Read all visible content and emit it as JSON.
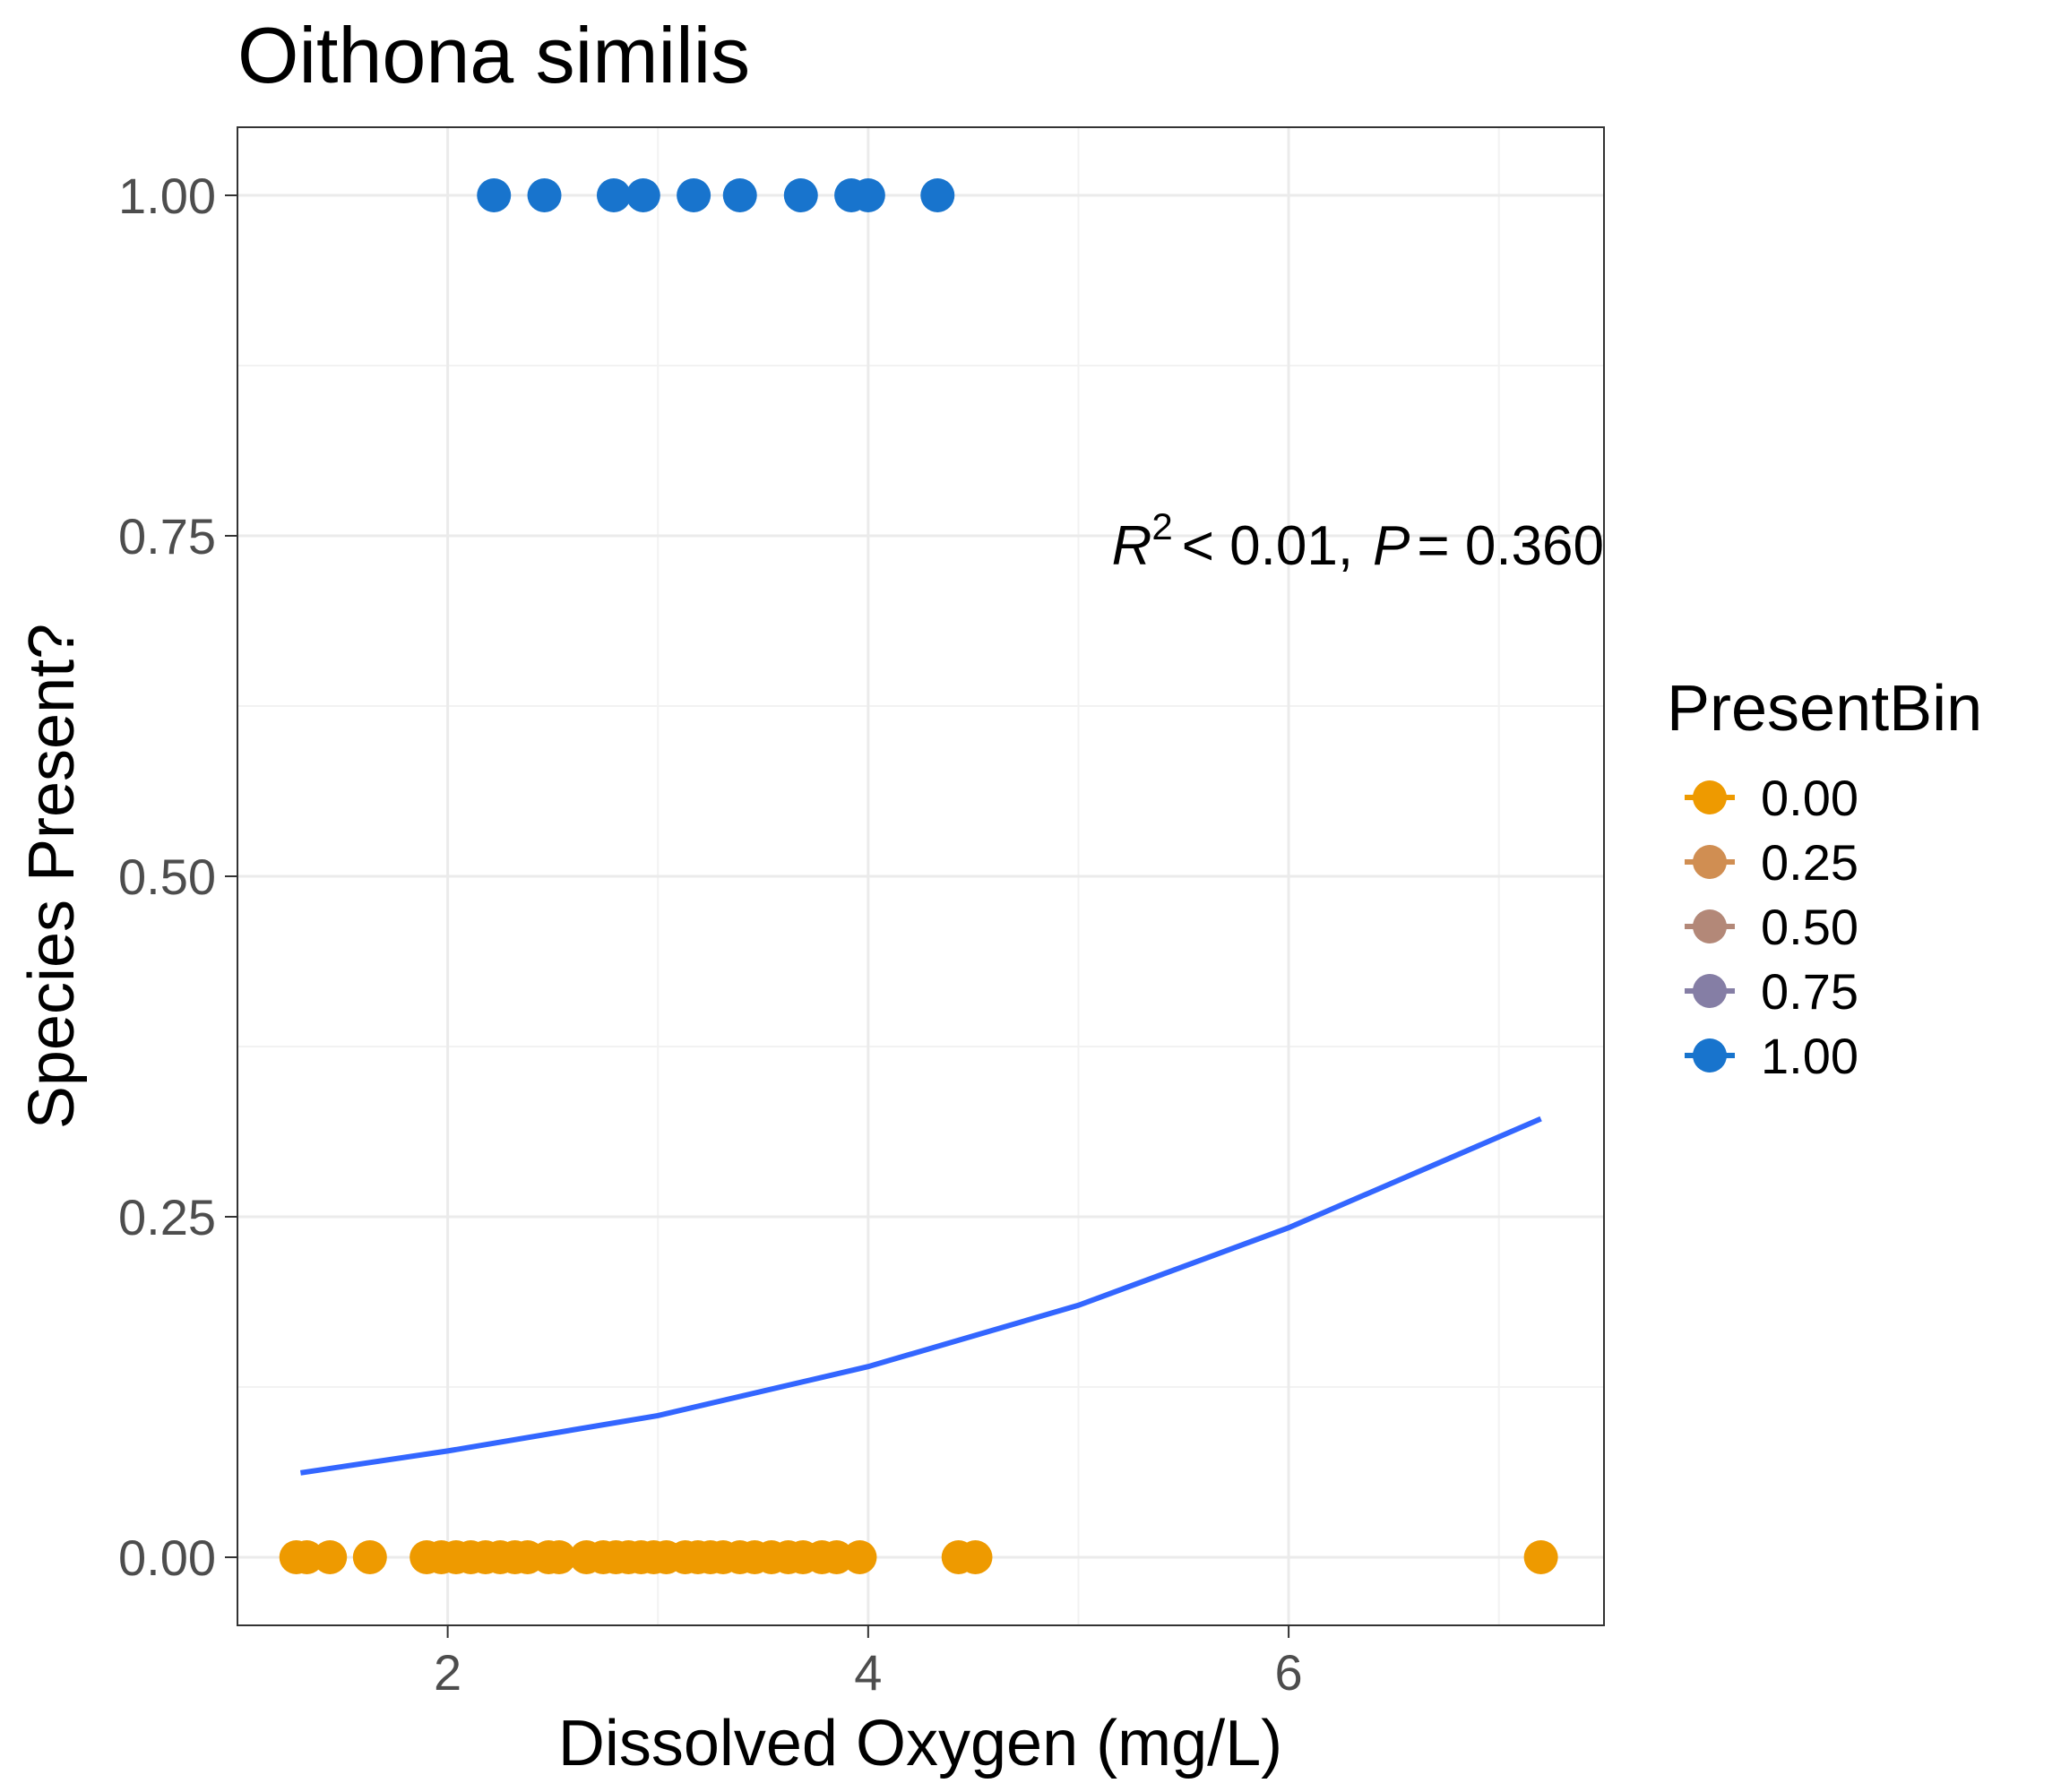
{
  "chart_data": {
    "type": "scatter",
    "title": "Oithona similis",
    "xlabel": "Dissolved Oxygen (mg/L)",
    "ylabel": "Species Present?",
    "xlim": [
      1.0,
      7.5
    ],
    "ylim": [
      -0.05,
      1.05
    ],
    "x_ticks": [
      2,
      4,
      6
    ],
    "x_tick_labels": [
      "2",
      "4",
      "6"
    ],
    "y_ticks": [
      0.0,
      0.25,
      0.5,
      0.75,
      1.0
    ],
    "y_tick_labels": [
      "0.00",
      "0.25",
      "0.50",
      "0.75",
      "1.00"
    ],
    "grid": true,
    "annotation": {
      "r_symbol": "R",
      "r_exponent": "2",
      "r_relation": "< 0.01,",
      "p_symbol": "P",
      "p_relation": "= 0.360"
    },
    "legend": {
      "title": "PresentBin",
      "placement": "right",
      "entries": [
        {
          "label": "0.00",
          "color": "#EE9A00"
        },
        {
          "label": "0.25",
          "color": "#D08E52"
        },
        {
          "label": "0.50",
          "color": "#B38878"
        },
        {
          "label": "0.75",
          "color": "#857EA5"
        },
        {
          "label": "1.00",
          "color": "#1874CD"
        }
      ]
    },
    "series": [
      {
        "presence": 1.0,
        "color": "#1874CD",
        "points": [
          {
            "x": 2.22,
            "y": 1
          },
          {
            "x": 2.46,
            "y": 1
          },
          {
            "x": 2.79,
            "y": 1
          },
          {
            "x": 2.93,
            "y": 1
          },
          {
            "x": 3.17,
            "y": 1
          },
          {
            "x": 3.39,
            "y": 1
          },
          {
            "x": 3.68,
            "y": 1
          },
          {
            "x": 3.92,
            "y": 1
          },
          {
            "x": 4.0,
            "y": 1
          },
          {
            "x": 4.33,
            "y": 1
          }
        ]
      },
      {
        "presence": 0.0,
        "color": "#EE9A00",
        "points": [
          {
            "x": 1.28,
            "y": 0
          },
          {
            "x": 1.33,
            "y": 0
          },
          {
            "x": 1.44,
            "y": 0
          },
          {
            "x": 1.63,
            "y": 0
          },
          {
            "x": 1.9,
            "y": 0
          },
          {
            "x": 1.97,
            "y": 0
          },
          {
            "x": 2.04,
            "y": 0
          },
          {
            "x": 2.11,
            "y": 0
          },
          {
            "x": 2.18,
            "y": 0
          },
          {
            "x": 2.25,
            "y": 0
          },
          {
            "x": 2.32,
            "y": 0
          },
          {
            "x": 2.38,
            "y": 0
          },
          {
            "x": 2.48,
            "y": 0
          },
          {
            "x": 2.53,
            "y": 0
          },
          {
            "x": 2.66,
            "y": 0
          },
          {
            "x": 2.74,
            "y": 0
          },
          {
            "x": 2.8,
            "y": 0
          },
          {
            "x": 2.86,
            "y": 0
          },
          {
            "x": 2.92,
            "y": 0
          },
          {
            "x": 2.98,
            "y": 0
          },
          {
            "x": 3.04,
            "y": 0
          },
          {
            "x": 3.13,
            "y": 0
          },
          {
            "x": 3.19,
            "y": 0
          },
          {
            "x": 3.25,
            "y": 0
          },
          {
            "x": 3.31,
            "y": 0
          },
          {
            "x": 3.39,
            "y": 0
          },
          {
            "x": 3.46,
            "y": 0
          },
          {
            "x": 3.54,
            "y": 0
          },
          {
            "x": 3.62,
            "y": 0
          },
          {
            "x": 3.69,
            "y": 0
          },
          {
            "x": 3.78,
            "y": 0
          },
          {
            "x": 3.85,
            "y": 0
          },
          {
            "x": 3.96,
            "y": 0
          },
          {
            "x": 4.43,
            "y": 0
          },
          {
            "x": 4.51,
            "y": 0
          },
          {
            "x": 7.2,
            "y": 0
          }
        ]
      }
    ],
    "fit_line": {
      "color": "#3366FF",
      "points": [
        {
          "x": 1.3,
          "y": 0.062
        },
        {
          "x": 2.0,
          "y": 0.078
        },
        {
          "x": 3.0,
          "y": 0.104
        },
        {
          "x": 4.0,
          "y": 0.14
        },
        {
          "x": 5.0,
          "y": 0.185
        },
        {
          "x": 6.0,
          "y": 0.242
        },
        {
          "x": 7.2,
          "y": 0.322
        }
      ]
    }
  }
}
